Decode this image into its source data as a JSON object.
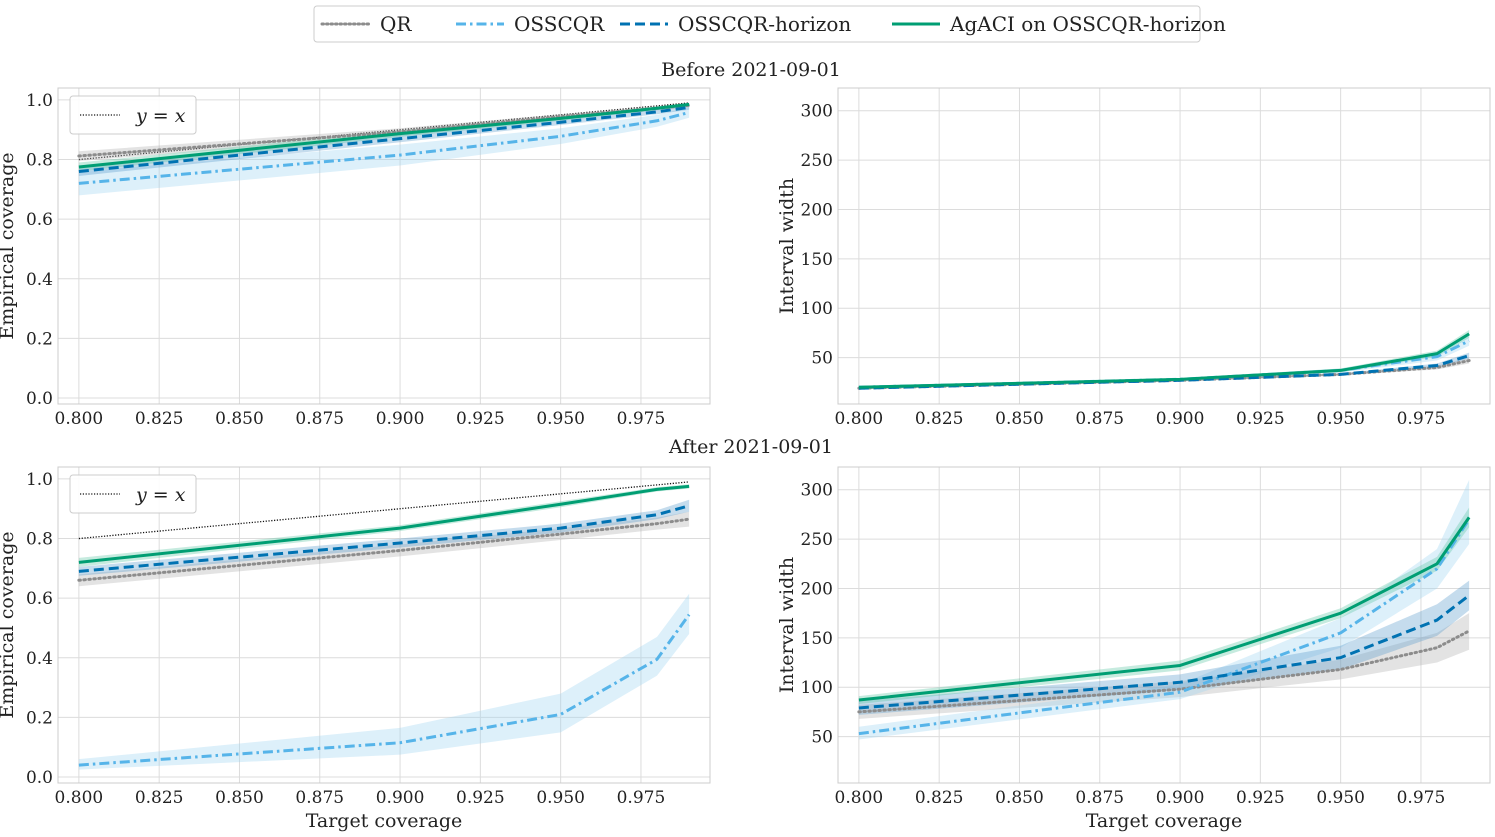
{
  "figure": {
    "legend": [
      {
        "label": "QR",
        "color": "#8c8c8c",
        "dash": "dotted"
      },
      {
        "label": "OSSCQR",
        "color": "#56b4e9",
        "dash": "dashdot"
      },
      {
        "label": "OSSCQR-horizon",
        "color": "#0072b2",
        "dash": "dashed"
      },
      {
        "label": "AgACI on OSSCQR-horizon",
        "color": "#009e73",
        "dash": "solid"
      }
    ],
    "row_titles": [
      "Before 2021-09-01",
      "After 2021-09-01"
    ],
    "ref_legend_label": "y = x",
    "xlabel": "Target coverage"
  },
  "chart_data": [
    {
      "type": "line",
      "row_title": "Before 2021-09-01",
      "ylabel": "Empirical coverage",
      "xlabel": "",
      "x": [
        0.8,
        0.9,
        0.95,
        0.98,
        0.99
      ],
      "xticks": [
        "0.800",
        "0.825",
        "0.850",
        "0.875",
        "0.900",
        "0.925",
        "0.950",
        "0.975"
      ],
      "yticks": [
        "0.0",
        "0.2",
        "0.4",
        "0.6",
        "0.8",
        "1.0"
      ],
      "xlim": [
        0.7935,
        0.9965
      ],
      "ylim": [
        -0.02,
        1.04
      ],
      "grid": true,
      "legend_position": "upper-left",
      "reference_line": {
        "label": "y = x",
        "x": [
          0.8,
          0.99
        ],
        "y": [
          0.8,
          0.99
        ]
      },
      "series": [
        {
          "name": "QR",
          "values": [
            0.812,
            0.893,
            0.944,
            0.972,
            0.982
          ],
          "lower": [
            0.795,
            0.88,
            0.935,
            0.965,
            0.975
          ],
          "upper": [
            0.828,
            0.905,
            0.952,
            0.979,
            0.988
          ]
        },
        {
          "name": "OSSCQR",
          "values": [
            0.72,
            0.815,
            0.878,
            0.93,
            0.958
          ],
          "lower": [
            0.68,
            0.78,
            0.852,
            0.91,
            0.94
          ],
          "upper": [
            0.76,
            0.85,
            0.905,
            0.95,
            0.975
          ]
        },
        {
          "name": "OSSCQR-horizon",
          "values": [
            0.76,
            0.87,
            0.925,
            0.96,
            0.975
          ],
          "lower": [
            0.745,
            0.858,
            0.916,
            0.952,
            0.967
          ],
          "upper": [
            0.775,
            0.882,
            0.934,
            0.968,
            0.983
          ]
        },
        {
          "name": "AgACI on OSSCQR-horizon",
          "values": [
            0.775,
            0.887,
            0.938,
            0.972,
            0.985
          ],
          "lower": [
            0.76,
            0.876,
            0.93,
            0.966,
            0.979
          ],
          "upper": [
            0.79,
            0.898,
            0.946,
            0.978,
            0.99
          ]
        }
      ]
    },
    {
      "type": "line",
      "row_title": "Before 2021-09-01",
      "ylabel": "Interval width",
      "xlabel": "",
      "x": [
        0.8,
        0.9,
        0.95,
        0.98,
        0.99
      ],
      "xticks": [
        "0.800",
        "0.825",
        "0.850",
        "0.875",
        "0.900",
        "0.925",
        "0.950",
        "0.975"
      ],
      "yticks": [
        "50",
        "100",
        "150",
        "200",
        "250",
        "300"
      ],
      "xlim": [
        0.7935,
        0.9965
      ],
      "ylim": [
        3,
        323
      ],
      "grid": true,
      "series": [
        {
          "name": "QR",
          "values": [
            19,
            27,
            33,
            40,
            47
          ],
          "lower": [
            18,
            26,
            32,
            38,
            44
          ],
          "upper": [
            20,
            28,
            34,
            42,
            50
          ]
        },
        {
          "name": "OSSCQR",
          "values": [
            20,
            28,
            37,
            51,
            67
          ],
          "lower": [
            19,
            27,
            35,
            47,
            62
          ],
          "upper": [
            21,
            29,
            39,
            55,
            72
          ]
        },
        {
          "name": "OSSCQR-horizon",
          "values": [
            19,
            27,
            33,
            42,
            52
          ],
          "lower": [
            18,
            26,
            32,
            40,
            49
          ],
          "upper": [
            20,
            28,
            34,
            44,
            55
          ]
        },
        {
          "name": "AgACI on OSSCQR-horizon",
          "values": [
            20,
            28,
            37,
            54,
            74
          ],
          "lower": [
            19,
            27,
            35,
            51,
            70
          ],
          "upper": [
            21,
            29,
            39,
            57,
            78
          ]
        }
      ]
    },
    {
      "type": "line",
      "row_title": "After 2021-09-01",
      "ylabel": "Empirical coverage",
      "xlabel": "Target coverage",
      "x": [
        0.8,
        0.9,
        0.95,
        0.98,
        0.99
      ],
      "xticks": [
        "0.800",
        "0.825",
        "0.850",
        "0.875",
        "0.900",
        "0.925",
        "0.950",
        "0.975"
      ],
      "yticks": [
        "0.0",
        "0.2",
        "0.4",
        "0.6",
        "0.8",
        "1.0"
      ],
      "xlim": [
        0.7935,
        0.9965
      ],
      "ylim": [
        -0.02,
        1.04
      ],
      "grid": true,
      "legend_position": "upper-left",
      "reference_line": {
        "label": "y = x",
        "x": [
          0.8,
          0.99
        ],
        "y": [
          0.8,
          0.99
        ]
      },
      "series": [
        {
          "name": "QR",
          "values": [
            0.66,
            0.76,
            0.815,
            0.85,
            0.865
          ],
          "lower": [
            0.64,
            0.74,
            0.795,
            0.83,
            0.84
          ],
          "upper": [
            0.68,
            0.78,
            0.835,
            0.87,
            0.89
          ]
        },
        {
          "name": "OSSCQR",
          "values": [
            0.04,
            0.115,
            0.21,
            0.395,
            0.545
          ],
          "lower": [
            0.025,
            0.075,
            0.15,
            0.34,
            0.48
          ],
          "upper": [
            0.06,
            0.165,
            0.28,
            0.47,
            0.615
          ]
        },
        {
          "name": "OSSCQR-horizon",
          "values": [
            0.69,
            0.785,
            0.835,
            0.88,
            0.91
          ],
          "lower": [
            0.675,
            0.77,
            0.82,
            0.865,
            0.89
          ],
          "upper": [
            0.705,
            0.8,
            0.85,
            0.895,
            0.93
          ]
        },
        {
          "name": "AgACI on OSSCQR-horizon",
          "values": [
            0.72,
            0.835,
            0.915,
            0.965,
            0.975
          ],
          "lower": [
            0.705,
            0.825,
            0.905,
            0.958,
            0.968
          ],
          "upper": [
            0.735,
            0.845,
            0.925,
            0.972,
            0.982
          ]
        }
      ]
    },
    {
      "type": "line",
      "row_title": "After 2021-09-01",
      "ylabel": "Interval width",
      "xlabel": "Target coverage",
      "x": [
        0.8,
        0.9,
        0.95,
        0.98,
        0.99
      ],
      "xticks": [
        "0.800",
        "0.825",
        "0.850",
        "0.875",
        "0.900",
        "0.925",
        "0.950",
        "0.975"
      ],
      "yticks": [
        "50",
        "100",
        "150",
        "200",
        "250",
        "300"
      ],
      "xlim": [
        0.7935,
        0.9965
      ],
      "ylim": [
        3,
        323
      ],
      "grid": true,
      "series": [
        {
          "name": "QR",
          "values": [
            75,
            98,
            118,
            140,
            157
          ],
          "lower": [
            68,
            90,
            108,
            125,
            138
          ],
          "upper": [
            82,
            106,
            128,
            155,
            175
          ]
        },
        {
          "name": "OSSCQR",
          "values": [
            53,
            95,
            155,
            220,
            270
          ],
          "lower": [
            47,
            88,
            140,
            200,
            245
          ],
          "upper": [
            60,
            103,
            170,
            240,
            310
          ]
        },
        {
          "name": "OSSCQR-horizon",
          "values": [
            79,
            105,
            130,
            168,
            193
          ],
          "lower": [
            72,
            97,
            118,
            152,
            178
          ],
          "upper": [
            86,
            113,
            142,
            184,
            208
          ]
        },
        {
          "name": "AgACI on OSSCQR-horizon",
          "values": [
            87,
            122,
            175,
            225,
            272
          ],
          "lower": [
            83,
            117,
            170,
            218,
            262
          ],
          "upper": [
            91,
            127,
            180,
            232,
            282
          ]
        }
      ]
    }
  ]
}
